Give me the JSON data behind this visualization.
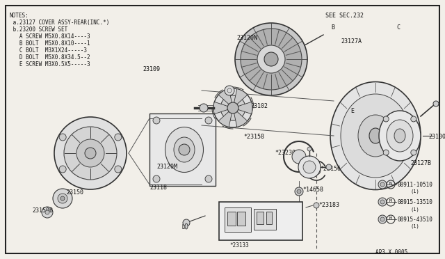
{
  "bg_color": "#f2efe9",
  "border_color": "#222222",
  "line_color": "#333333",
  "text_color": "#111111",
  "diagram_code": "AP3 X 0005",
  "notes_lines": [
    "NOTES:",
    " a.23127 COVER ASSY-REAR(INC.*)",
    " b.23200 SCREW SET",
    "   A SCREW M5X0.8X14----3",
    "   B BOLT  M5X0.8X10----1",
    "   C BOLT  M3X1X24-----3",
    "   D BOLT  M5X0.8X34.5--2",
    "   E SCREW M3X0.5X5-----3"
  ],
  "see_sec": "SEE SEC.232"
}
